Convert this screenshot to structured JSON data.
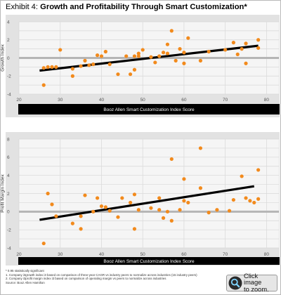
{
  "header": {
    "exhibit_label": "Exhibit 4:",
    "title": "Growth and Profitability Through Smart Customization*"
  },
  "colors": {
    "point": "#f28a1c",
    "trend": "#000000",
    "zero_line": "#b5b5b5",
    "axis_bar": "#000000",
    "panel_bg": "#e2e2e2"
  },
  "chart_data": [
    {
      "type": "scatter",
      "ylabel": "Growth Index",
      "xlabel": "Booz Allen Smart Customization Index Score",
      "xlim": [
        20,
        83
      ],
      "ylim": [
        -4,
        4
      ],
      "x_ticks": [
        20,
        30,
        40,
        50,
        60,
        70,
        80
      ],
      "y_ticks": [
        4,
        2,
        0,
        -2,
        -4
      ],
      "grid": true,
      "points": [
        {
          "x": 26,
          "y": -3.0
        },
        {
          "x": 26,
          "y": -1.1
        },
        {
          "x": 27,
          "y": -1.0
        },
        {
          "x": 28,
          "y": -1.0
        },
        {
          "x": 29,
          "y": -1.0
        },
        {
          "x": 30,
          "y": 0.9
        },
        {
          "x": 33,
          "y": -2.0
        },
        {
          "x": 33,
          "y": -1.2
        },
        {
          "x": 35,
          "y": -0.9
        },
        {
          "x": 36,
          "y": -0.3
        },
        {
          "x": 37,
          "y": -0.8
        },
        {
          "x": 38,
          "y": -0.7
        },
        {
          "x": 39,
          "y": 0.3
        },
        {
          "x": 40,
          "y": 0.2
        },
        {
          "x": 41,
          "y": 0.7
        },
        {
          "x": 42,
          "y": -0.7
        },
        {
          "x": 44,
          "y": -1.8
        },
        {
          "x": 46,
          "y": 0.2
        },
        {
          "x": 47,
          "y": -1.8
        },
        {
          "x": 48,
          "y": 0.2
        },
        {
          "x": 48,
          "y": -1.3
        },
        {
          "x": 49,
          "y": 0.5
        },
        {
          "x": 49,
          "y": 0.2
        },
        {
          "x": 50,
          "y": 0.9
        },
        {
          "x": 52,
          "y": 0.1
        },
        {
          "x": 53,
          "y": -0.5
        },
        {
          "x": 54,
          "y": 0.2
        },
        {
          "x": 55,
          "y": 0.6
        },
        {
          "x": 56,
          "y": 0.5
        },
        {
          "x": 56,
          "y": 1.5
        },
        {
          "x": 57,
          "y": 3.0
        },
        {
          "x": 58,
          "y": -0.3
        },
        {
          "x": 59,
          "y": 1.0
        },
        {
          "x": 60,
          "y": 0.6
        },
        {
          "x": 60,
          "y": -0.6
        },
        {
          "x": 61,
          "y": 2.2
        },
        {
          "x": 64,
          "y": -0.3
        },
        {
          "x": 66,
          "y": 0.7
        },
        {
          "x": 70,
          "y": 0.9
        },
        {
          "x": 72,
          "y": 1.7
        },
        {
          "x": 73,
          "y": 0.4
        },
        {
          "x": 74,
          "y": 1.0
        },
        {
          "x": 75,
          "y": 1.6
        },
        {
          "x": 75,
          "y": -0.6
        },
        {
          "x": 78,
          "y": 2.0
        },
        {
          "x": 78,
          "y": 1.1
        }
      ],
      "trendline": {
        "x": [
          25,
          78
        ],
        "y": [
          -1.4,
          1.35
        ]
      }
    },
    {
      "type": "scatter",
      "ylabel": "Profit Margin Index",
      "xlabel": "Booz Allen Smart Customization Index Score",
      "xlim": [
        20,
        83
      ],
      "ylim": [
        -4,
        8
      ],
      "x_ticks": [
        20,
        30,
        40,
        50,
        60,
        70,
        80
      ],
      "y_ticks": [
        8,
        6,
        4,
        2,
        0,
        -2,
        -4
      ],
      "grid": true,
      "points": [
        {
          "x": 26,
          "y": -3.5
        },
        {
          "x": 27,
          "y": 2.0
        },
        {
          "x": 28,
          "y": 0.8
        },
        {
          "x": 29,
          "y": -0.5
        },
        {
          "x": 33,
          "y": -1.3
        },
        {
          "x": 35,
          "y": -0.5
        },
        {
          "x": 35,
          "y": -1.9
        },
        {
          "x": 36,
          "y": 1.8
        },
        {
          "x": 38,
          "y": 0.0
        },
        {
          "x": 39,
          "y": 1.5
        },
        {
          "x": 40,
          "y": 0.6
        },
        {
          "x": 41,
          "y": 0.5
        },
        {
          "x": 42,
          "y": 0.1
        },
        {
          "x": 44,
          "y": -0.6
        },
        {
          "x": 45,
          "y": 1.5
        },
        {
          "x": 47,
          "y": 1.0
        },
        {
          "x": 48,
          "y": 1.9
        },
        {
          "x": 48,
          "y": -1.9
        },
        {
          "x": 49,
          "y": 0.2
        },
        {
          "x": 52,
          "y": 0.4
        },
        {
          "x": 54,
          "y": 0.2
        },
        {
          "x": 54,
          "y": 1.5
        },
        {
          "x": 55,
          "y": -0.7
        },
        {
          "x": 56,
          "y": 0.0
        },
        {
          "x": 57,
          "y": 5.8
        },
        {
          "x": 57,
          "y": -1.0
        },
        {
          "x": 59,
          "y": 0.2
        },
        {
          "x": 60,
          "y": 3.6
        },
        {
          "x": 60,
          "y": 1.2
        },
        {
          "x": 61,
          "y": 1.0
        },
        {
          "x": 64,
          "y": 7.0
        },
        {
          "x": 64,
          "y": 2.6
        },
        {
          "x": 66,
          "y": -0.1
        },
        {
          "x": 68,
          "y": 0.2
        },
        {
          "x": 71,
          "y": 0.1
        },
        {
          "x": 72,
          "y": 1.3
        },
        {
          "x": 74,
          "y": 3.9
        },
        {
          "x": 75,
          "y": 1.5
        },
        {
          "x": 76,
          "y": 1.2
        },
        {
          "x": 77,
          "y": 1.0
        },
        {
          "x": 78,
          "y": 1.4
        },
        {
          "x": 78,
          "y": 4.6
        }
      ],
      "trendline": {
        "x": [
          25,
          77
        ],
        "y": [
          -0.9,
          2.8
        ]
      }
    }
  ],
  "footnotes": [
    "*  0.95 statistically significant",
    "1.   Company i3growth index i3 based on comparison of three-year CAGR vs industry peers to normalize across industries (15 industry peers)",
    "2.   Company i3profit margin index i3 based on comparison of operating margin vs peers to normalize across industries",
    "Source: Booz Allen Hamilton"
  ],
  "zoom": {
    "line1": "Click image",
    "line2": "to zoom."
  }
}
